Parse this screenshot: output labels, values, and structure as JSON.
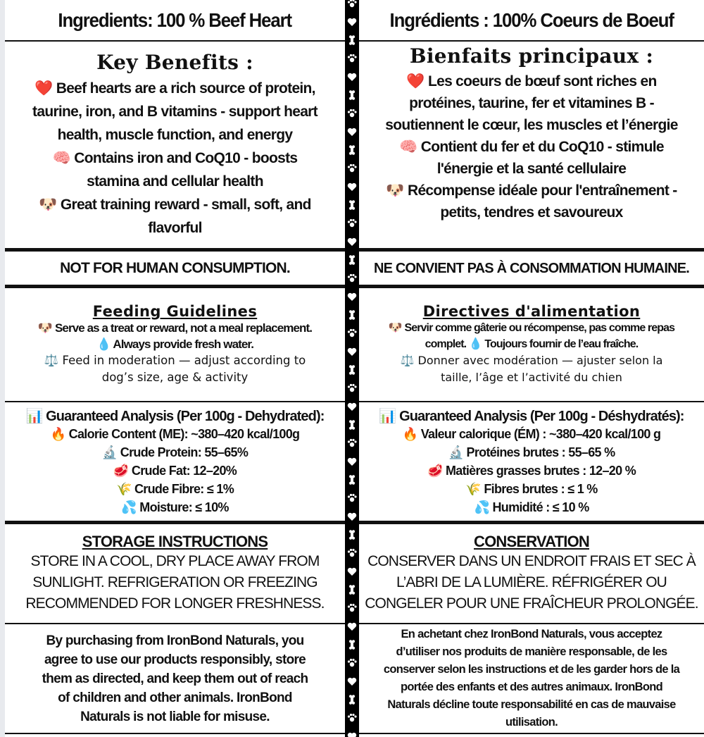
{
  "en": {
    "ingredients": "Ingredients: 100 % Beef Heart",
    "benefits_heading": "Key Benefits :",
    "benefits": [
      "❤️ Beef hearts are a rich source of protein,\ntaurine, iron, and B vitamins - support heart\nhealth, muscle function, and energy",
      "🧠 Contains iron and CoQ10 - boosts\nstamina and cellular health",
      "🐶 Great training reward - small, soft, and\nflavorful"
    ],
    "warning": "NOT FOR HUMAN CONSUMPTION.",
    "feeding_heading": "Feeding Guidelines",
    "feeding_bold": "🐶 Serve as a treat or reward, not a meal replacement.\n💧 Always provide fresh water.",
    "feeding_normal": "⚖️ Feed in moderation — adjust according to\ndog’s size, age & activity",
    "analysis_heading": "📊 Guaranteed Analysis (Per 100g - Dehydrated):",
    "analysis": [
      "🔥 Calorie Content (ME): ~380–420 kcal/100g",
      "🔬 Crude Protein: 55–65%",
      "🥩 Crude Fat: 12–20%",
      "🌾 Crude Fibre: ≤ 1%",
      "💦 Moisture: ≤ 10%"
    ],
    "storage_heading": "STORAGE INSTRUCTIONS",
    "storage_text": "STORE IN A COOL, DRY PLACE AWAY FROM\nSUNLIGHT. REFRIGERATION OR FREEZING\nRECOMMENDED FOR LONGER FRESHNESS.",
    "disclaimer": "By purchasing from IronBond Naturals, you\nagree to use our products responsibly, store\nthem as directed, and keep them out of reach\nof children and other animals. IronBond\nNaturals is not liable for misuse."
  },
  "fr": {
    "ingredients": "Ingrédients : 100% Coeurs de Boeuf",
    "benefits_heading": "Bienfaits principaux :",
    "benefits": [
      "❤️ Les coeurs de bœuf sont riches en\nprotéines, taurine, fer  et vitamines B -\nsoutiennent le cœur, les muscles et l’énergie",
      "🧠 Contient du fer et du CoQ10 - stimule\nl'énergie et la santé cellulaire",
      "🐶 Récompense idéale pour l'entraînement -\npetits, tendres et savoureux"
    ],
    "warning": "NE CONVIENT PAS À CONSOMMATION HUMAINE.",
    "feeding_heading": "Directives d'alimentation",
    "feeding_bold": "🐶 Servir comme gâterie ou récompense, pas comme repas\ncomplet.  💧 Toujours fournir de l’eau fraîche.",
    "feeding_normal": "⚖️ Donner avec modération — ajuster selon la\ntaille, l’âge et l’activité du chien",
    "analysis_heading": "📊 Guaranteed Analysis (Per 100g - Déshydratés):",
    "analysis": [
      "🔥 Valeur calorique (ÉM) : ~380–420 kcal/100 g",
      "🔬 Protéines brutes : 55–65 %",
      "🥩 Matières grasses brutes : 12–20 %",
      "🌾 Fibres brutes : ≤ 1 %",
      "💦 Humidité : ≤ 10 %"
    ],
    "storage_heading": "CONSERVATION",
    "storage_text": "CONSERVER DANS UN ENDROIT FRAIS ET SEC À\nL’ABRI DE LA LUMIÈRE. RÉFRIGÉRER OU\nCONGELER POUR UNE FRAÎCHEUR PROLONGÉE.",
    "disclaimer": "En achetant chez IronBond Naturals, vous acceptez\nd’utiliser nos produits de manière responsable, de les\nconserver selon les instructions et de les garder hors de la\nportée des enfants et des autres animaux. IronBond\nNaturals décline toute responsabilité en cas de mauvaise\nutilisation."
  },
  "divider": {
    "pattern": [
      "paw-icon",
      "heart-icon",
      "bone-icon"
    ],
    "color": "#000000",
    "icon_color": "#ffffff"
  }
}
